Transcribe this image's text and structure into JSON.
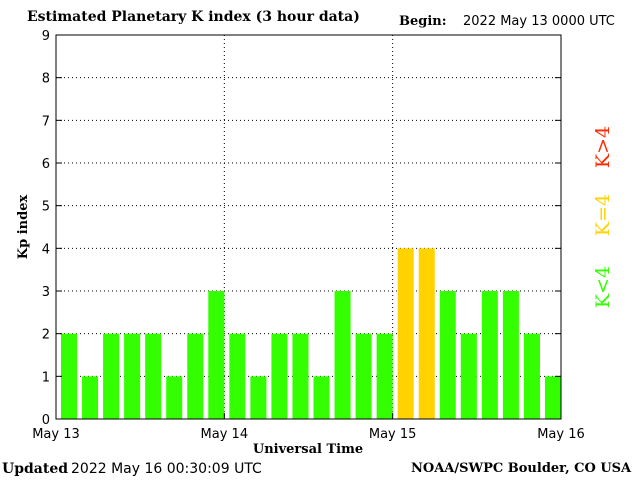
{
  "header": {
    "title": "Estimated Planetary K index (3 hour data)",
    "begin_label": "Begin:",
    "begin_value": "2022 May 13 0000 UTC"
  },
  "footer": {
    "updated_label": "Updated",
    "updated_value": "2022 May 16 00:30:09 UTC",
    "source": "NOAA/SWPC Boulder, CO USA"
  },
  "chart_data": {
    "type": "bar",
    "xlabel": "Universal Time",
    "ylabel": "Kp index",
    "ylim": [
      0,
      9
    ],
    "yticks": [
      0,
      1,
      2,
      3,
      4,
      5,
      6,
      7,
      8,
      9
    ],
    "xticks": [
      "May 13",
      "May 14",
      "May 15",
      "May 16"
    ],
    "grid": true,
    "bars_per_day": 8,
    "values": [
      2,
      1,
      2,
      2,
      2,
      1,
      2,
      3,
      2,
      1,
      2,
      2,
      1,
      3,
      2,
      2,
      4,
      4,
      3,
      2,
      3,
      3,
      2,
      1
    ],
    "colors": {
      "below4": "#33ff00",
      "equal4": "#ffd200",
      "above4": "#ff2a00"
    },
    "legend": [
      {
        "label": "K<4",
        "color": "#33ff00"
      },
      {
        "label": "K=4",
        "color": "#ffd200"
      },
      {
        "label": "K>4",
        "color": "#ff2a00"
      }
    ]
  }
}
